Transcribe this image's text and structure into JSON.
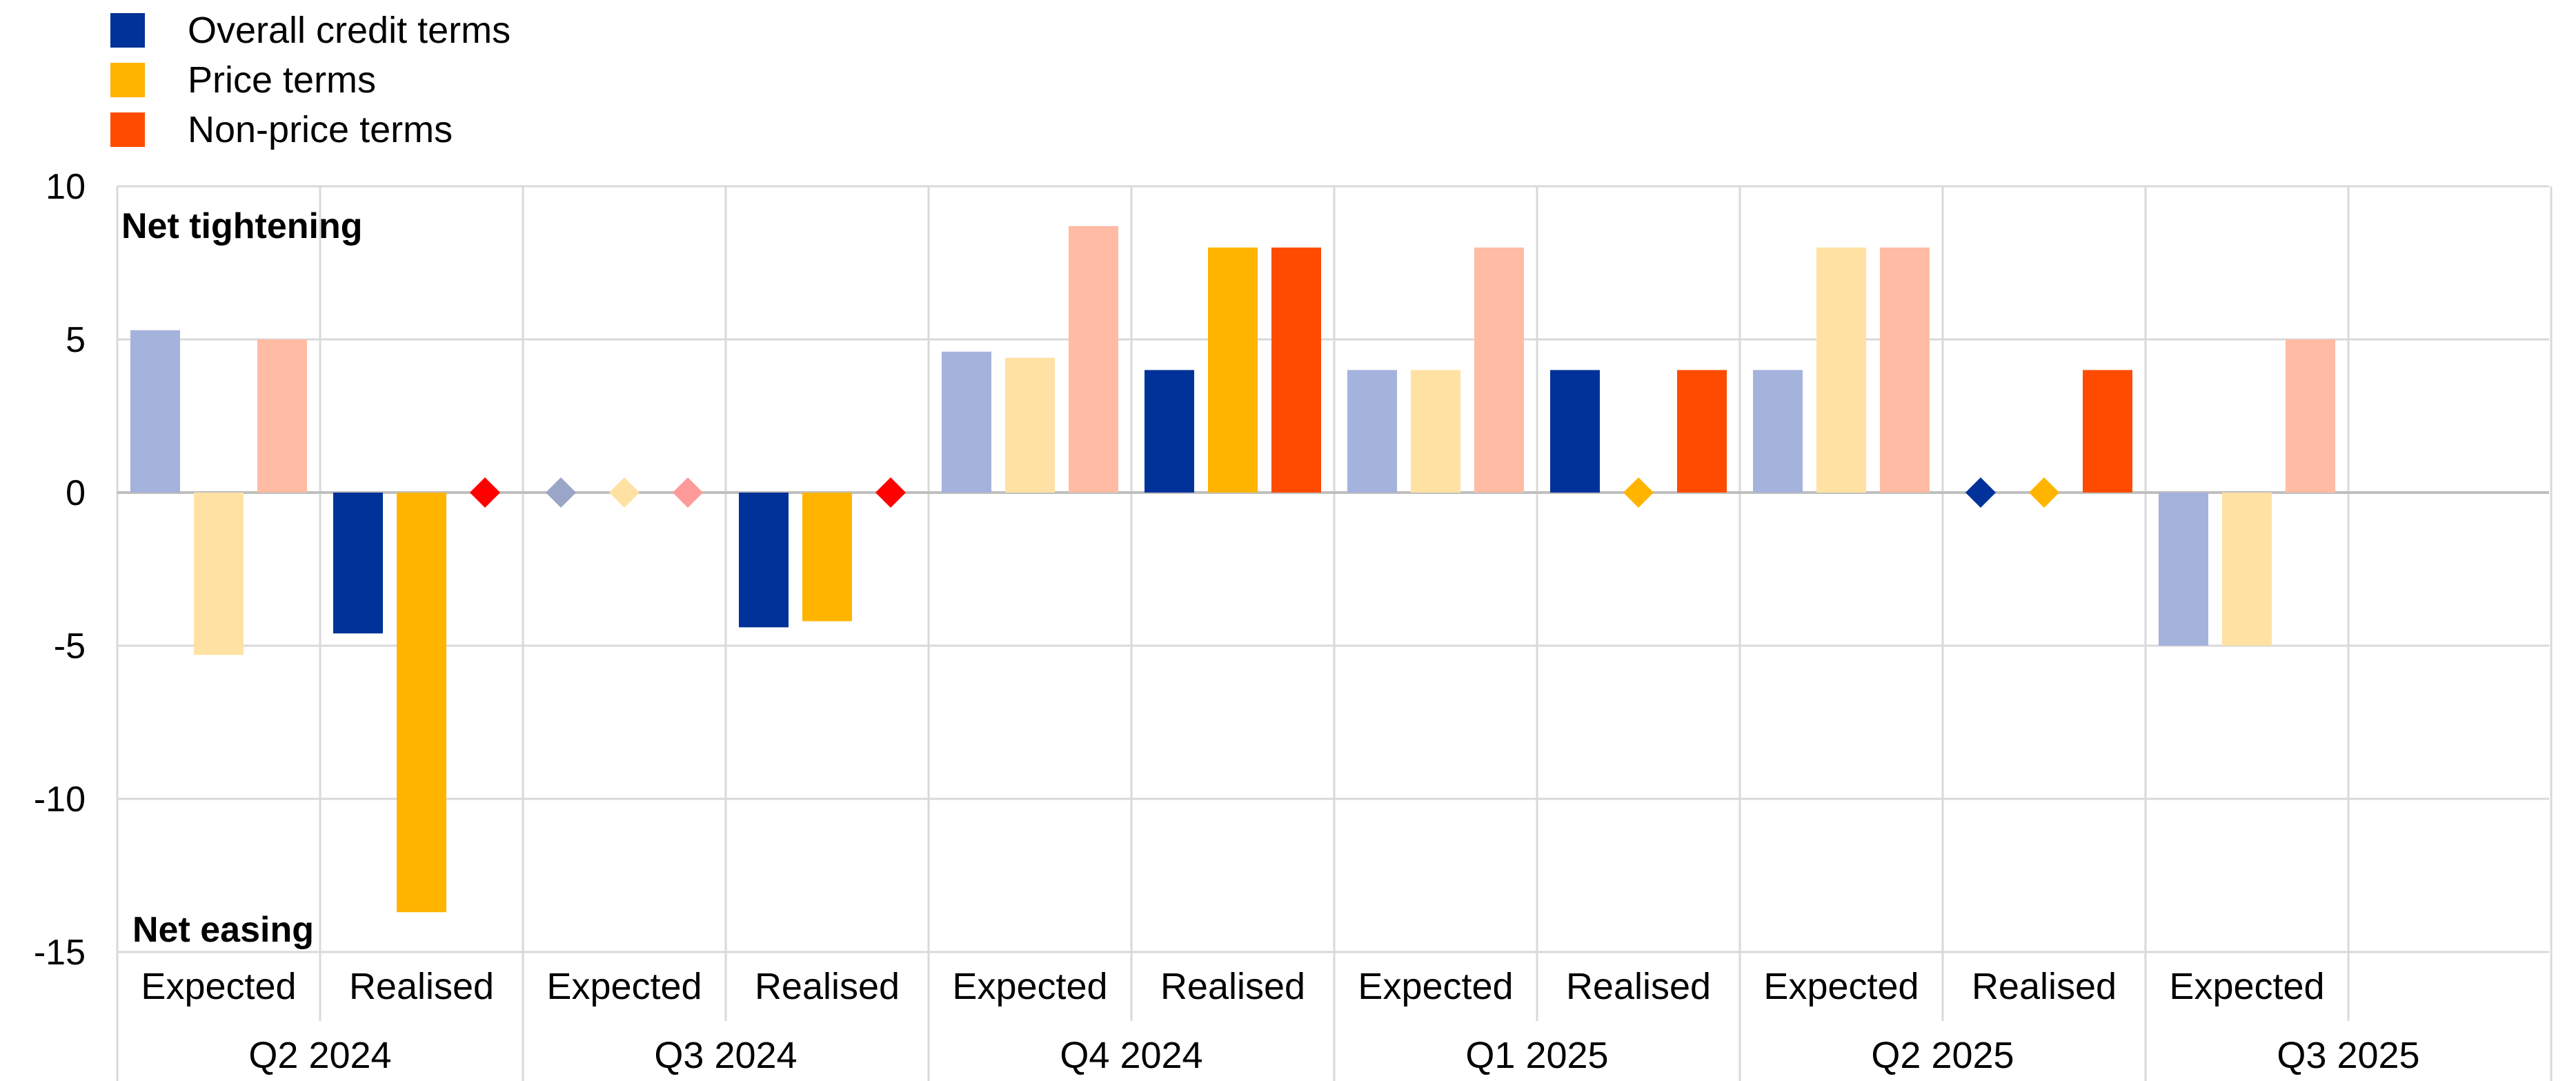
{
  "legend": [
    {
      "label": "Overall credit terms",
      "color": "#003299"
    },
    {
      "label": "Price terms",
      "color": "#FFB400"
    },
    {
      "label": "Non-price terms",
      "color": "#FF4B00"
    }
  ],
  "annotations": {
    "top": "Net tightening",
    "bottom": "Net easing"
  },
  "chart_data": {
    "type": "bar",
    "ylim": [
      -15,
      10
    ],
    "yticks": [
      10,
      5,
      0,
      -5,
      -10,
      -15
    ],
    "grid": true,
    "legend_position": "top-left",
    "periods": [
      "Q2 2024",
      "Q3 2024",
      "Q4 2024",
      "Q1 2025",
      "Q2 2025",
      "Q3 2025"
    ],
    "groups": [
      {
        "period": "Q2 2024",
        "label": "Expected",
        "kind": "expected",
        "values": [
          5.3,
          -5.3,
          5.0
        ]
      },
      {
        "period": "Q2 2024",
        "label": "Realised",
        "kind": "realised",
        "values": [
          -4.6,
          -13.7,
          0
        ]
      },
      {
        "period": "Q3 2024",
        "label": "Expected",
        "kind": "expected",
        "values": [
          0,
          0,
          0
        ]
      },
      {
        "period": "Q3 2024",
        "label": "Realised",
        "kind": "realised",
        "values": [
          -4.4,
          -4.2,
          0
        ]
      },
      {
        "period": "Q4 2024",
        "label": "Expected",
        "kind": "expected",
        "values": [
          4.6,
          4.4,
          8.7
        ]
      },
      {
        "period": "Q4 2024",
        "label": "Realised",
        "kind": "realised",
        "values": [
          4.0,
          8.0,
          8.0
        ]
      },
      {
        "period": "Q1 2025",
        "label": "Expected",
        "kind": "expected",
        "values": [
          4.0,
          4.0,
          8.0
        ]
      },
      {
        "period": "Q1 2025",
        "label": "Realised",
        "kind": "realised",
        "values": [
          4.0,
          0,
          4.0
        ]
      },
      {
        "period": "Q2 2025",
        "label": "Expected",
        "kind": "expected",
        "values": [
          4.0,
          8.0,
          8.0
        ]
      },
      {
        "period": "Q2 2025",
        "label": "Realised",
        "kind": "realised",
        "values": [
          0,
          0,
          4.0
        ]
      },
      {
        "period": "Q3 2025",
        "label": "Expected",
        "kind": "expected",
        "values": [
          -5.0,
          -5.0,
          5.0
        ]
      }
    ],
    "colors": {
      "realised": [
        "#003299",
        "#FFB400",
        "#FF4B00"
      ],
      "expected": [
        "#A4B3DC",
        "#FFE2A3",
        "#FFBBA3"
      ],
      "zero_marker_realised": [
        "#003299",
        "#FFB400",
        "#FF0000"
      ],
      "zero_marker_expected": [
        "#9AA6C8",
        "#FFE2A3",
        "#FF9A9A"
      ]
    }
  }
}
